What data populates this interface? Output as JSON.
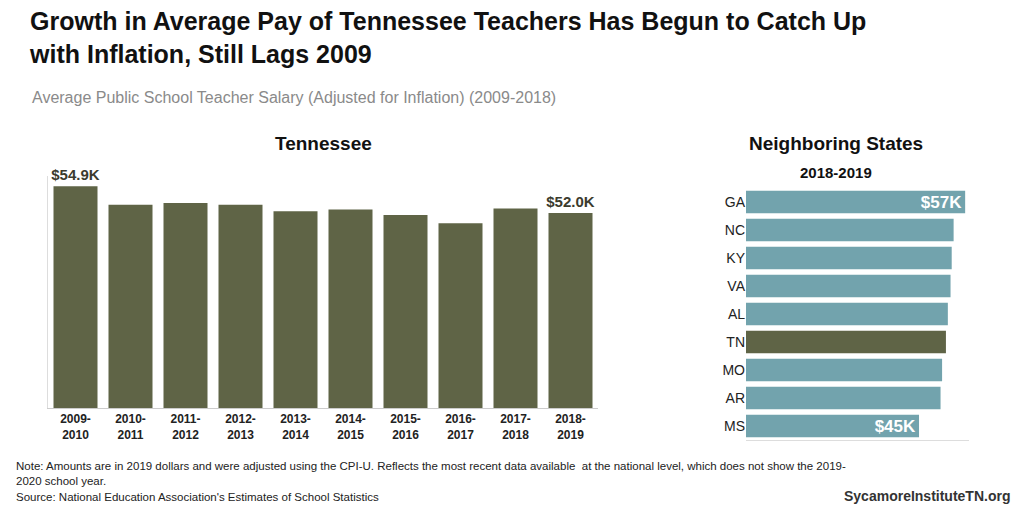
{
  "header": {
    "title": [
      "Growth in Average Pay of Tennessee Teachers Has Begun to Catch Up",
      "with Inflation, Still Lags 2009"
    ],
    "subtitle": "Average Public School Teacher Salary (Adjusted for Inflation) (2009-2018)"
  },
  "footer": {
    "note": [
      "Note: Amounts are in 2019 dollars and were adjusted using the CPI-U. Reflects the most recent data available  at the national level, which does not show the 2019-",
      "2020 school year."
    ],
    "source": "Source: National Education Association's Estimates of School Statistics",
    "website": "SycamoreInstituteTN.org"
  },
  "chart_data": [
    {
      "type": "bar",
      "title": "Tennessee",
      "categories": [
        "2009-2010",
        "2010-2011",
        "2011-2012",
        "2012-2013",
        "2013-2014",
        "2014-2015",
        "2015-2016",
        "2016-2017",
        "2017-2018",
        "2018-2019"
      ],
      "values": [
        54.9,
        52.9,
        53.1,
        52.9,
        52.2,
        52.4,
        51.8,
        50.9,
        52.5,
        52.0
      ],
      "value_labels": [
        "$54.9K",
        null,
        null,
        null,
        null,
        null,
        null,
        null,
        null,
        "$52.0K"
      ],
      "data_labels": true,
      "color": "#5f6446",
      "ylim": [
        31,
        56
      ],
      "grid": false,
      "tick_labels": "x"
    },
    {
      "type": "bar",
      "title": "Neighboring States",
      "subtitle": "2018-2019",
      "orientation": "horizontal",
      "categories": [
        "GA",
        "NC",
        "KY",
        "VA",
        "AL",
        "TN",
        "MO",
        "AR",
        "MS"
      ],
      "values": [
        57,
        54.0,
        53.5,
        53.2,
        52.5,
        52.0,
        51.0,
        50.6,
        45
      ],
      "value_labels": [
        "$57K",
        null,
        null,
        null,
        null,
        null,
        null,
        null,
        "$45K"
      ],
      "data_labels": true,
      "colors": [
        "#72a3ad",
        "#72a3ad",
        "#72a3ad",
        "#72a3ad",
        "#72a3ad",
        "#5f6446",
        "#72a3ad",
        "#72a3ad",
        "#72a3ad"
      ],
      "xlim": [
        0,
        58
      ],
      "grid": false,
      "tick_labels": "y"
    }
  ]
}
